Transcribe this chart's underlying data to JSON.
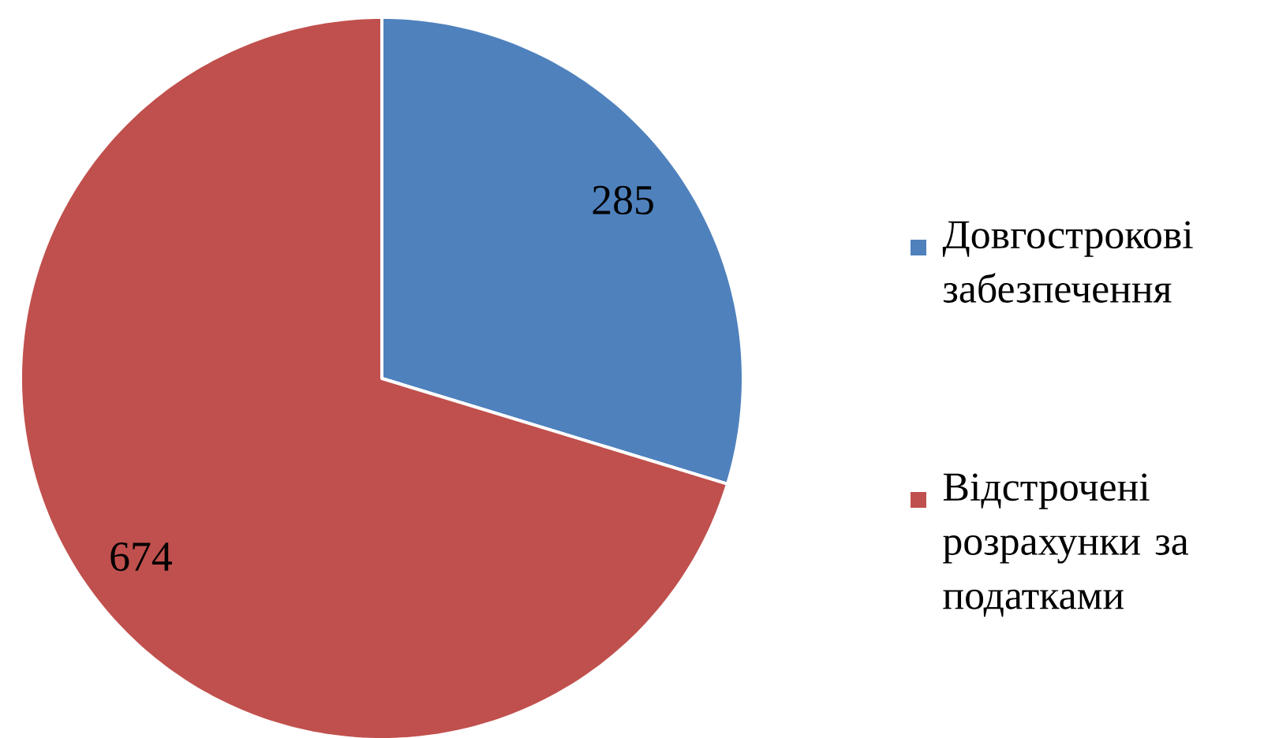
{
  "chart_data": {
    "type": "pie",
    "categories": [
      "Довгострокові забезпечення",
      "Відстрочені розрахунки за податками"
    ],
    "values": [
      285,
      674
    ],
    "colors": [
      "#4f81bd",
      "#c0504d"
    ],
    "data_labels": true,
    "legend": "right"
  }
}
